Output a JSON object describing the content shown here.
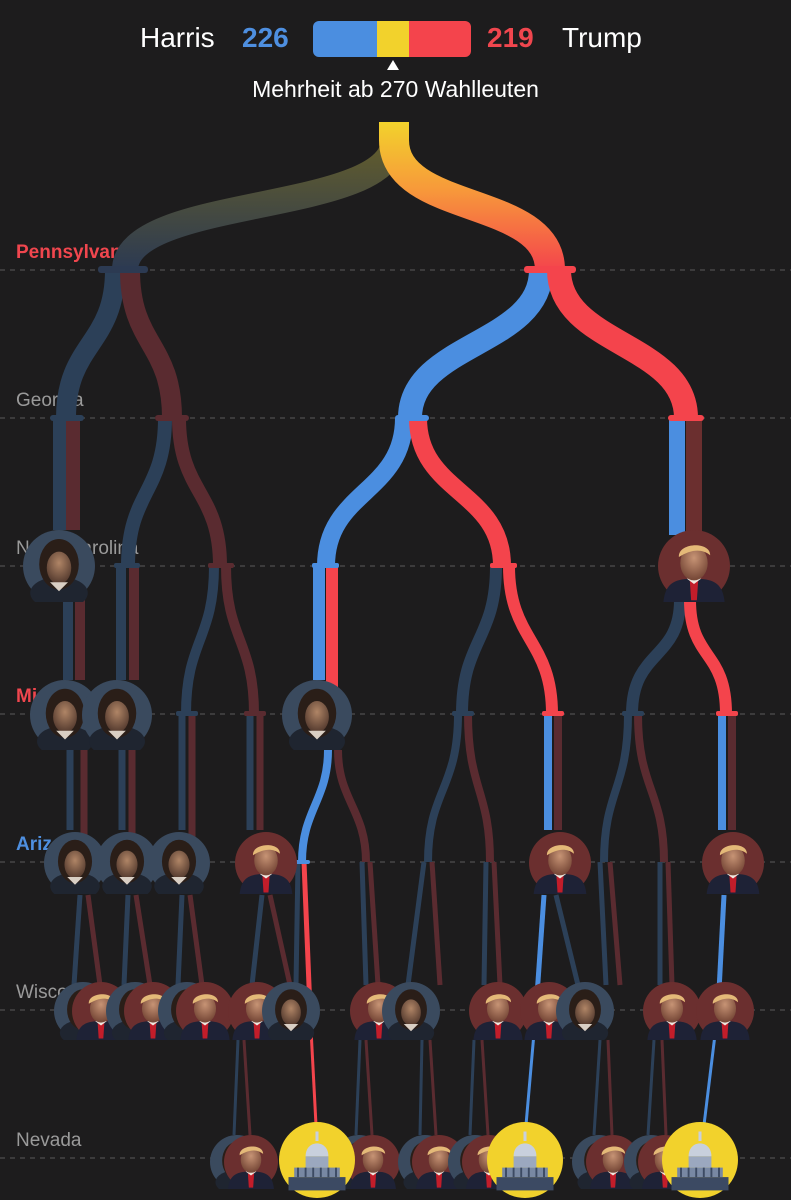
{
  "header": {
    "candidate_left": "Harris",
    "candidate_right": "Trump",
    "score_left": "226",
    "score_right": "219",
    "majority_text": "Mehrheit ab 270 Wahlleuten",
    "colors": {
      "harris": "#4b8ee0",
      "trump": "#f4444c",
      "undecided": "#f2d22c"
    }
  },
  "states": [
    {
      "name": "Pennsylvania",
      "style": "highlight-red"
    },
    {
      "name": "Georgia",
      "style": "muted"
    },
    {
      "name": "North Carolina",
      "style": "muted"
    },
    {
      "name": "Michigan",
      "style": "highlight-red"
    },
    {
      "name": "Arizona",
      "style": "highlight-blue"
    },
    {
      "name": "Wisconsin",
      "style": "muted"
    },
    {
      "name": "Nevada",
      "style": "muted"
    }
  ],
  "node_icons": {
    "harris": "harris-portrait-icon",
    "trump": "trump-portrait-icon",
    "capitol": "capitol-icon"
  }
}
